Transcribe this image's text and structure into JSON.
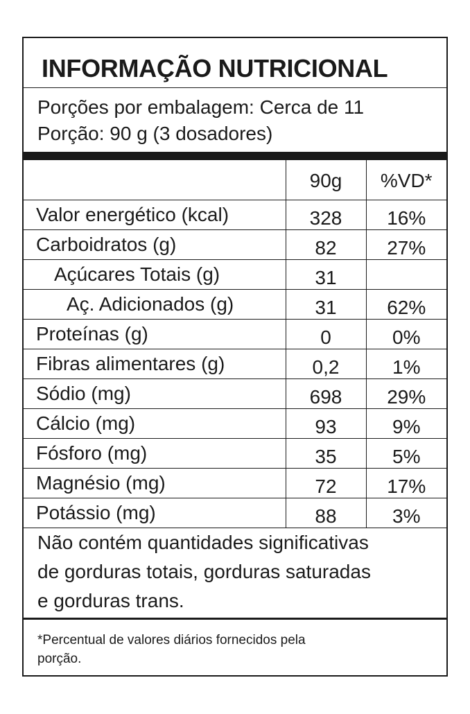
{
  "label": {
    "title": "INFORMAÇÃO NUTRICIONAL",
    "servings_per_package": "Porções por embalagem: Cerca de 11",
    "serving_size": "Porção: 90 g (3 dosadores)",
    "header": {
      "qty": "90g",
      "vd": "%VD*"
    },
    "rows": [
      {
        "name": "Valor energético (kcal)",
        "qty": "328",
        "vd": "16%"
      },
      {
        "name": "Carboidratos (g)",
        "qty": "82",
        "vd": "27%"
      },
      {
        "name": "Açúcares Totais (g)",
        "qty": "31",
        "vd": ""
      },
      {
        "name": "Aç. Adicionados (g)",
        "qty": "31",
        "vd": "62%"
      },
      {
        "name": "Proteínas (g)",
        "qty": "0",
        "vd": "0%"
      },
      {
        "name": "Fibras alimentares (g)",
        "qty": "0,2",
        "vd": "1%"
      },
      {
        "name": "Sódio (mg)",
        "qty": "698",
        "vd": "29%"
      },
      {
        "name": "Cálcio (mg)",
        "qty": "93",
        "vd": "9%"
      },
      {
        "name": "Fósforo (mg)",
        "qty": "35",
        "vd": "5%"
      },
      {
        "name": "Magnésio (mg)",
        "qty": "72",
        "vd": "17%"
      },
      {
        "name": "Potássio (mg)",
        "qty": "88",
        "vd": "3%"
      }
    ],
    "not_significant_lines": [
      "Não contém quantidades significativas",
      "de gorduras totais, gorduras saturadas",
      "e gorduras trans."
    ],
    "footnote_lines": [
      "*Percentual de valores diários fornecidos pela",
      "porção."
    ]
  }
}
